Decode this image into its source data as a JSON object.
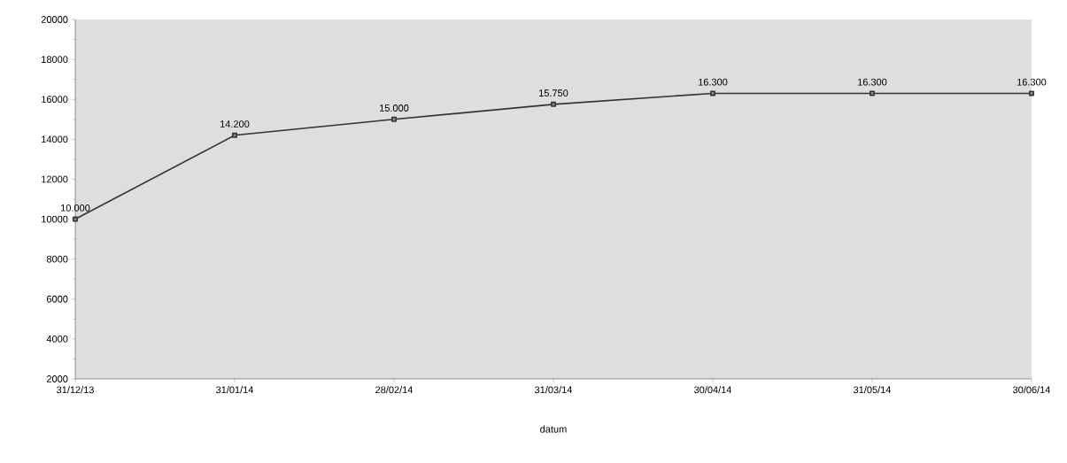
{
  "chart_data": {
    "type": "line",
    "xlabel": "datum",
    "categories": [
      "31/12/13",
      "31/01/14",
      "28/02/14",
      "31/03/14",
      "30/04/14",
      "31/05/14",
      "30/06/14"
    ],
    "values": [
      10000,
      14200,
      15000,
      15750,
      16300,
      16300,
      16300
    ],
    "value_labels": [
      "10.000",
      "14.200",
      "15.000",
      "15.750",
      "16.300",
      "16.300",
      "16.300"
    ],
    "color": "#333333",
    "marker": "square",
    "line_style": "solid",
    "grid": false,
    "ylim": [
      2000,
      20000
    ],
    "yticks": [
      2000,
      4000,
      6000,
      8000,
      10000,
      12000,
      14000,
      16000,
      18000,
      20000
    ]
  }
}
